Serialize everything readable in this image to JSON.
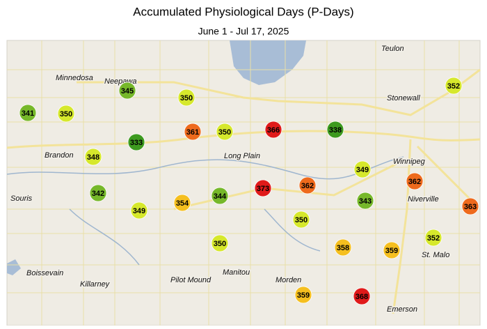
{
  "title": "Accumulated Physiological Days (P-Days)",
  "subtitle": "June 1 - Jul 17, 2025",
  "towns": [
    "Teulon",
    "Minnedosa",
    "Neepawa",
    "Stonewall",
    "Winnipeg",
    "Brandon",
    "Long Plain",
    "Souris",
    "Niverville",
    "St. Malo",
    "Boissevain",
    "Killarney",
    "Pilot Mound",
    "Manitou",
    "Morden",
    "Emerson"
  ],
  "stations": [
    {
      "value": 345,
      "color": "#76b82a"
    },
    {
      "value": 350,
      "color": "#d6e82c"
    },
    {
      "value": 341,
      "color": "#76b82a"
    },
    {
      "value": 350,
      "color": "#d6e82c"
    },
    {
      "value": 361,
      "color": "#ee6a1c"
    },
    {
      "value": 350,
      "color": "#d6e82c"
    },
    {
      "value": 366,
      "color": "#e01a1a"
    },
    {
      "value": 338,
      "color": "#3d9a1f"
    },
    {
      "value": 352,
      "color": "#d6e82c"
    },
    {
      "value": 333,
      "color": "#3d9a1f"
    },
    {
      "value": 348,
      "color": "#d6e82c"
    },
    {
      "value": 349,
      "color": "#d6e82c"
    },
    {
      "value": 342,
      "color": "#76b82a"
    },
    {
      "value": 349,
      "color": "#d6e82c"
    },
    {
      "value": 354,
      "color": "#f5bf1f"
    },
    {
      "value": 344,
      "color": "#76b82a"
    },
    {
      "value": 373,
      "color": "#e01a1a"
    },
    {
      "value": 362,
      "color": "#ee6a1c"
    },
    {
      "value": 362,
      "color": "#ee6a1c"
    },
    {
      "value": 343,
      "color": "#76b82a"
    },
    {
      "value": 363,
      "color": "#ee6a1c"
    },
    {
      "value": 350,
      "color": "#d6e82c"
    },
    {
      "value": 350,
      "color": "#d6e82c"
    },
    {
      "value": 358,
      "color": "#f5bf1f"
    },
    {
      "value": 359,
      "color": "#f5bf1f"
    },
    {
      "value": 352,
      "color": "#d6e82c"
    },
    {
      "value": 359,
      "color": "#f5bf1f"
    },
    {
      "value": 368,
      "color": "#e01a1a"
    }
  ]
}
